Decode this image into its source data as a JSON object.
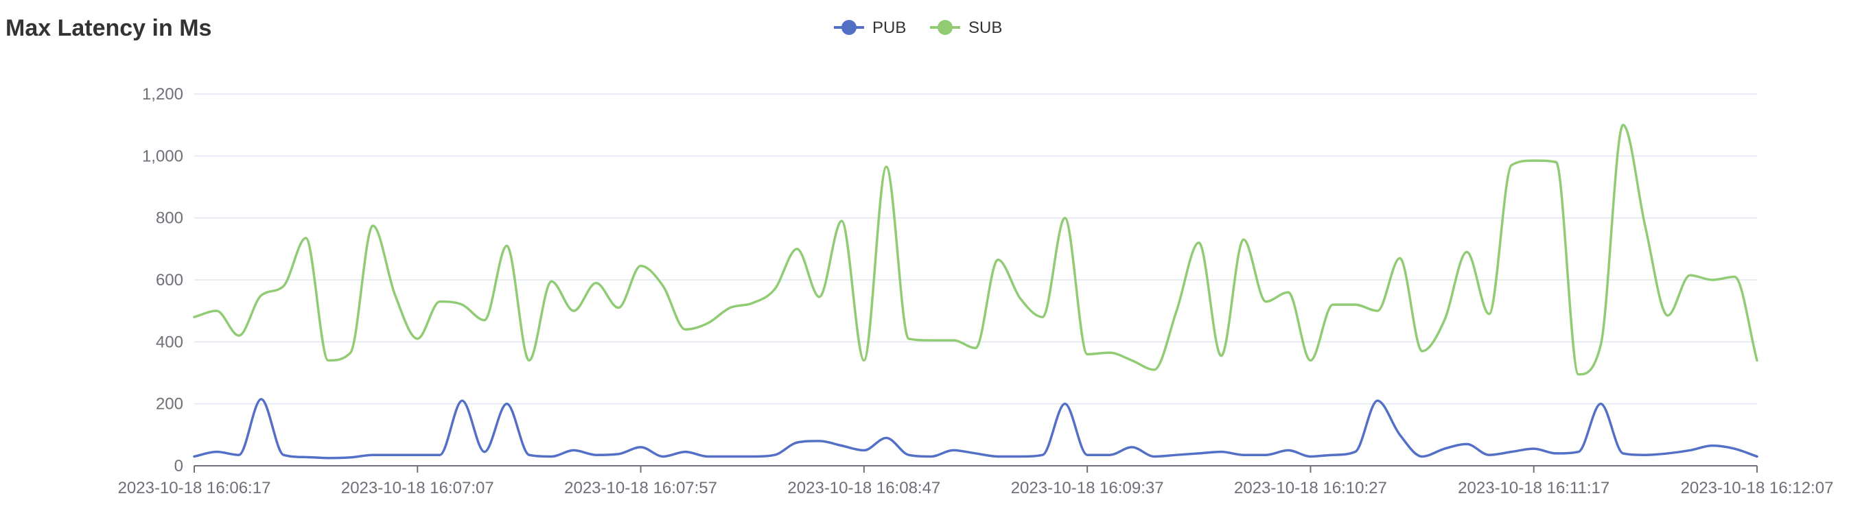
{
  "title": "Max Latency in Ms",
  "chart_data": {
    "type": "line",
    "title": "Max Latency in Ms",
    "xlabel": "",
    "ylabel": "",
    "ylim": [
      0,
      1200
    ],
    "yticks": [
      "0",
      "200",
      "400",
      "600",
      "800",
      "1,000",
      "1,200"
    ],
    "ytick_values": [
      0,
      200,
      400,
      600,
      800,
      1000,
      1200
    ],
    "xticks": [
      "2023-10-18 16:06:17",
      "2023-10-18 16:07:07",
      "2023-10-18 16:07:57",
      "2023-10-18 16:08:47",
      "2023-10-18 16:09:37",
      "2023-10-18 16:10:27",
      "2023-10-18 16:11:17",
      "2023-10-18 16:12:07"
    ],
    "xtick_seconds": [
      0,
      50,
      100,
      150,
      200,
      250,
      300,
      350
    ],
    "grid": true,
    "legend_position": "top-center",
    "series": [
      {
        "name": "PUB",
        "color": "#5470c6",
        "x": [
          0,
          5,
          10,
          15,
          20,
          25,
          30,
          35,
          40,
          45,
          50,
          55,
          60,
          65,
          70,
          75,
          80,
          85,
          90,
          95,
          100,
          105,
          110,
          115,
          120,
          125,
          130,
          135,
          140,
          145,
          150,
          155,
          160,
          165,
          170,
          175,
          180,
          185,
          190,
          195,
          200,
          205,
          210,
          215,
          220,
          225,
          230,
          235,
          240,
          245,
          250,
          255,
          260,
          265,
          270,
          275,
          280,
          285,
          290,
          295,
          300,
          305,
          310,
          315,
          320,
          325,
          330,
          335,
          340,
          345,
          350
        ],
        "values": [
          30,
          45,
          35,
          215,
          35,
          28,
          25,
          27,
          35,
          35,
          35,
          35,
          210,
          45,
          200,
          35,
          30,
          50,
          35,
          38,
          60,
          30,
          45,
          30,
          30,
          30,
          35,
          75,
          80,
          65,
          50,
          90,
          35,
          30,
          50,
          40,
          30,
          30,
          35,
          200,
          35,
          35,
          60,
          30,
          35,
          40,
          45,
          35,
          35,
          50,
          30,
          35,
          45,
          210,
          100,
          30,
          55,
          70,
          35,
          45,
          55,
          40,
          45,
          200,
          40,
          35,
          40,
          50,
          65,
          55,
          30
        ]
      },
      {
        "name": "SUB",
        "color": "#91cc75",
        "x": [
          0,
          5,
          10,
          15,
          20,
          25,
          30,
          35,
          40,
          45,
          50,
          55,
          60,
          65,
          70,
          75,
          80,
          85,
          90,
          95,
          100,
          105,
          110,
          115,
          120,
          125,
          130,
          135,
          140,
          145,
          150,
          155,
          160,
          165,
          170,
          175,
          180,
          185,
          190,
          195,
          200,
          205,
          210,
          215,
          220,
          225,
          230,
          235,
          240,
          245,
          250,
          255,
          260,
          265,
          270,
          275,
          280,
          285,
          290,
          295,
          300,
          305,
          310,
          315,
          320,
          325,
          330,
          335,
          340,
          345,
          350
        ],
        "values": [
          480,
          500,
          420,
          550,
          580,
          735,
          340,
          365,
          775,
          550,
          410,
          530,
          520,
          470,
          710,
          340,
          595,
          500,
          590,
          510,
          645,
          580,
          440,
          460,
          510,
          525,
          570,
          700,
          545,
          790,
          340,
          965,
          410,
          405,
          405,
          380,
          665,
          540,
          480,
          800,
          360,
          365,
          340,
          310,
          500,
          720,
          355,
          730,
          530,
          560,
          340,
          520,
          520,
          500,
          670,
          370,
          470,
          690,
          490,
          970,
          985,
          980,
          295,
          390,
          1100,
          770,
          485,
          615,
          600,
          610,
          340
        ]
      }
    ]
  }
}
